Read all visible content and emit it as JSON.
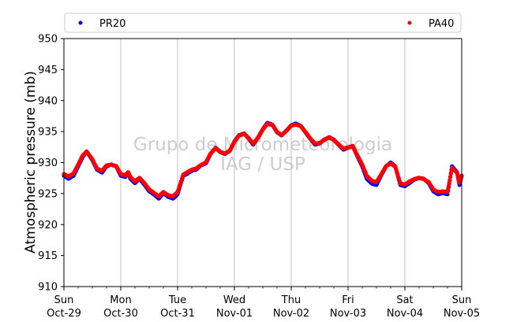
{
  "chart_data": {
    "type": "scatter",
    "title": "",
    "ylabel": "Atmospheric pressure (mb)",
    "xlabel": "",
    "ylim": [
      910,
      950
    ],
    "yticks": [
      910,
      915,
      920,
      925,
      930,
      935,
      940,
      945,
      950
    ],
    "xlim": [
      "2017-10-29 00:00",
      "2017-11-05 00:00"
    ],
    "xticks": [
      {
        "day": "Sun",
        "date": "Oct-29"
      },
      {
        "day": "Mon",
        "date": "Oct-30"
      },
      {
        "day": "Tue",
        "date": "Oct-31"
      },
      {
        "day": "Wed",
        "date": "Nov-01"
      },
      {
        "day": "Thu",
        "date": "Nov-02"
      },
      {
        "day": "Fri",
        "date": "Nov-03"
      },
      {
        "day": "Sat",
        "date": "Nov-04"
      },
      {
        "day": "Sun",
        "date": "Nov-05"
      }
    ],
    "grid": "x",
    "legend_position": "top",
    "watermark": [
      "Grupo de Micrometeorologia",
      "IAG / USP"
    ],
    "series": [
      {
        "name": "PR20",
        "color": "#0000ff",
        "x_days": [
          0.0,
          0.08,
          0.17,
          0.25,
          0.33,
          0.4,
          0.5,
          0.58,
          0.67,
          0.75,
          0.83,
          0.92,
          1.0,
          1.08,
          1.13,
          1.17,
          1.25,
          1.33,
          1.42,
          1.5,
          1.58,
          1.67,
          1.75,
          1.83,
          1.92,
          2.0,
          2.1,
          2.17,
          2.25,
          2.33,
          2.4,
          2.5,
          2.58,
          2.67,
          2.75,
          2.83,
          2.92,
          3.0,
          3.08,
          3.17,
          3.25,
          3.33,
          3.42,
          3.5,
          3.58,
          3.67,
          3.75,
          3.83,
          3.92,
          4.0,
          4.08,
          4.17,
          4.25,
          4.33,
          4.42,
          4.5,
          4.58,
          4.67,
          4.75,
          4.83,
          4.92,
          5.0,
          5.08,
          5.17,
          5.25,
          5.33,
          5.42,
          5.5,
          5.58,
          5.67,
          5.75,
          5.83,
          5.92,
          6.0,
          6.08,
          6.17,
          6.25,
          6.33,
          6.42,
          6.5,
          6.58,
          6.67,
          6.75,
          6.83,
          6.92,
          6.96,
          7.0
        ],
        "y": [
          928.0,
          927.5,
          928.0,
          929.5,
          931.0,
          931.9,
          930.5,
          929.0,
          928.5,
          929.5,
          929.8,
          929.5,
          928.0,
          927.8,
          928.5,
          927.5,
          926.8,
          927.5,
          926.5,
          925.5,
          925.0,
          924.3,
          925.2,
          924.6,
          924.3,
          925.0,
          928.0,
          928.3,
          928.8,
          929.0,
          929.6,
          930.0,
          931.5,
          932.5,
          931.8,
          931.5,
          932.0,
          933.5,
          934.5,
          934.8,
          934.0,
          933.0,
          934.2,
          935.5,
          936.5,
          936.2,
          935.0,
          934.5,
          935.3,
          936.1,
          936.4,
          936.0,
          935.0,
          934.0,
          933.0,
          933.2,
          933.8,
          934.2,
          933.8,
          933.0,
          932.2,
          932.5,
          932.8,
          931.0,
          929.5,
          927.5,
          926.7,
          926.5,
          928.0,
          929.5,
          930.1,
          929.5,
          926.5,
          926.3,
          926.8,
          927.4,
          927.6,
          927.5,
          926.8,
          925.5,
          925.0,
          925.2,
          925.0,
          929.5,
          928.5,
          926.5,
          928.0
        ]
      },
      {
        "name": "PA40",
        "color": "#ff0000",
        "x_days": [
          0.0,
          0.08,
          0.17,
          0.25,
          0.33,
          0.4,
          0.5,
          0.58,
          0.67,
          0.75,
          0.83,
          0.92,
          1.0,
          1.08,
          1.13,
          1.17,
          1.25,
          1.33,
          1.42,
          1.5,
          1.58,
          1.67,
          1.75,
          1.83,
          1.92,
          2.0,
          2.1,
          2.17,
          2.25,
          2.33,
          2.4,
          2.5,
          2.58,
          2.67,
          2.75,
          2.83,
          2.92,
          3.0,
          3.08,
          3.17,
          3.25,
          3.33,
          3.42,
          3.5,
          3.58,
          3.67,
          3.75,
          3.83,
          3.92,
          4.0,
          4.08,
          4.17,
          4.25,
          4.33,
          4.42,
          4.5,
          4.58,
          4.67,
          4.75,
          4.83,
          4.92,
          5.0,
          5.08,
          5.17,
          5.25,
          5.33,
          5.42,
          5.5,
          5.58,
          5.67,
          5.75,
          5.83,
          5.92,
          6.0,
          6.08,
          6.17,
          6.25,
          6.33,
          6.42,
          6.5,
          6.58,
          6.67,
          6.75,
          6.83,
          6.92,
          6.96,
          7.0
        ],
        "y": [
          928.1,
          927.7,
          928.2,
          929.6,
          931.1,
          931.7,
          930.5,
          929.0,
          928.6,
          929.5,
          929.6,
          929.4,
          928.1,
          927.9,
          928.4,
          927.6,
          926.9,
          927.5,
          926.6,
          925.6,
          925.1,
          924.5,
          925.2,
          924.7,
          924.5,
          925.2,
          928.0,
          928.4,
          928.8,
          929.0,
          929.5,
          930.0,
          931.4,
          932.3,
          931.7,
          931.4,
          931.9,
          933.3,
          934.3,
          934.6,
          933.9,
          933.0,
          934.0,
          935.3,
          936.2,
          936.0,
          934.9,
          934.4,
          935.1,
          935.9,
          936.1,
          935.8,
          934.9,
          933.9,
          933.0,
          933.1,
          933.6,
          934.0,
          933.6,
          932.9,
          932.2,
          932.4,
          932.6,
          931.0,
          929.6,
          927.8,
          927.0,
          926.8,
          928.0,
          929.4,
          929.8,
          929.3,
          926.6,
          926.4,
          926.9,
          927.3,
          927.5,
          927.3,
          926.8,
          925.6,
          925.2,
          925.3,
          925.2,
          929.1,
          928.3,
          926.7,
          927.8
        ]
      }
    ]
  }
}
